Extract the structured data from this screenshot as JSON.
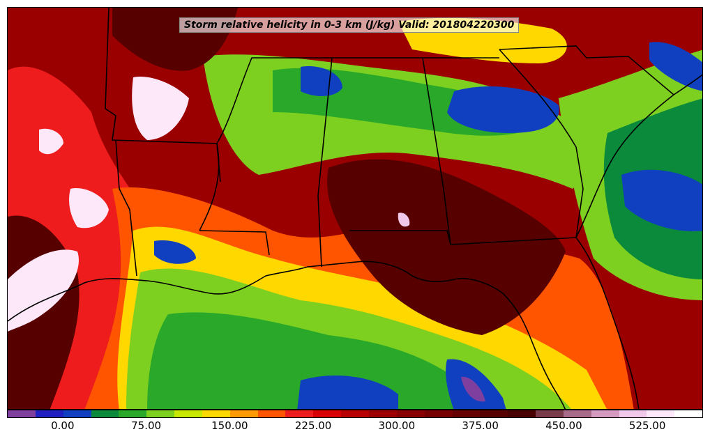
{
  "title": "Storm relative helicity in 0-3 km (J/kg) Valid: 201804220300",
  "colorbar": {
    "colors": [
      "#7f3f9f",
      "#2020c0",
      "#1040c0",
      "#0a8a3a",
      "#2aa82a",
      "#7ed020",
      "#c8e800",
      "#ffd800",
      "#ff9a00",
      "#ff5500",
      "#ee1c1c",
      "#d80000",
      "#b80000",
      "#9c0000",
      "#880000",
      "#760000",
      "#640000",
      "#560000",
      "#4a0000",
      "#7a3a4a",
      "#a86a88",
      "#d49ac0",
      "#f0c8ea",
      "#fde8fa",
      "#ffffff"
    ],
    "tick_labels": [
      "0.00",
      "75.00",
      "150.00",
      "225.00",
      "300.00",
      "375.00",
      "450.00",
      "525.00"
    ],
    "tick_positions_fraction": [
      0.08,
      0.2,
      0.32,
      0.44,
      0.56,
      0.68,
      0.8,
      0.92
    ]
  },
  "map": {
    "background_color": "#9b0000",
    "regions": [
      {
        "color": "#ee1c1c"
      },
      {
        "color": "#ff5500"
      },
      {
        "color": "#ffd800"
      },
      {
        "color": "#7ed020"
      },
      {
        "color": "#2aa82a"
      },
      {
        "color": "#0a8a3a"
      },
      {
        "color": "#1040c0"
      },
      {
        "color": "#560000"
      },
      {
        "color": "#fde8fa"
      },
      {
        "color": "#7f3f9f"
      }
    ]
  }
}
